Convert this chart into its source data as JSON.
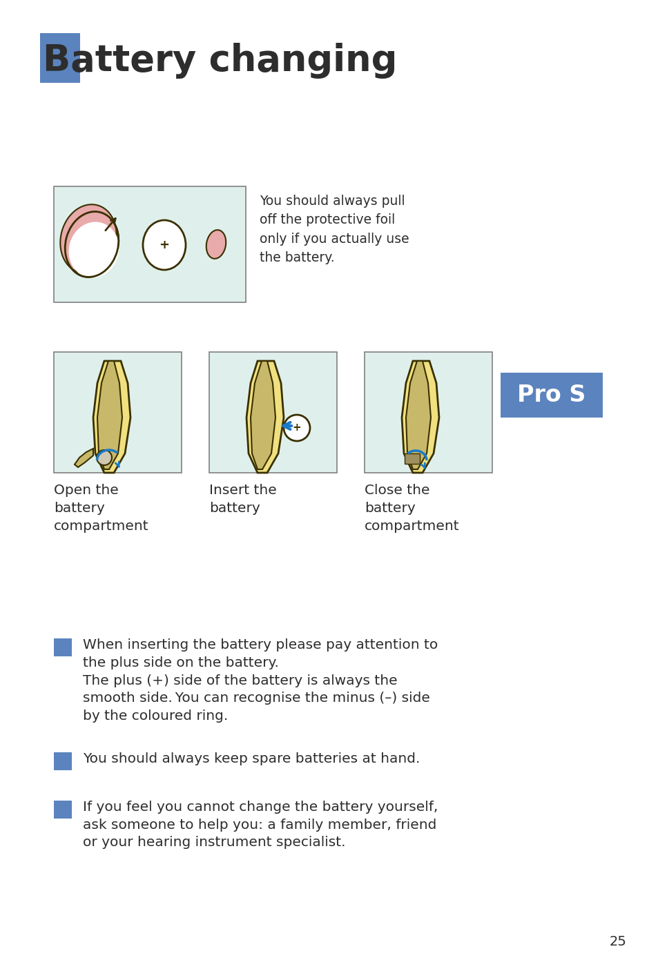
{
  "title": "Battery changing",
  "title_color": "#2d2d2d",
  "title_fontsize": 38,
  "header_box_color": "#5b83be",
  "bg_color": "#ffffff",
  "blue_color": "#5b83be",
  "bullet_square_color": "#5b83be",
  "text_color": "#2d2d2d",
  "foil_text": "You should always pull\noff the protective foil\nonly if you actually use\nthe battery.",
  "caption1": "Open the\nbattery\ncompartment",
  "caption2": "Insert the\nbattery",
  "caption3": "Close the\nbattery\ncompartment",
  "pros_label": "Pro S",
  "bullet1_line1": "When inserting the battery please pay attention to",
  "bullet1_line2": "the plus side on the battery.",
  "bullet1_line3": "The plus (+) side of the battery is always the",
  "bullet1_line4": "smooth side. You can recognise the minus (–) side",
  "bullet1_line5": "by the coloured ring.",
  "bullet2": "You should always keep spare batteries at hand.",
  "bullet3_line1": "If you feel you cannot change the battery yourself,",
  "bullet3_line2": "ask someone to help you: a family member, friend",
  "bullet3_line3": "or your hearing instrument specialist.",
  "page_number": "25",
  "img_bg_color": "#dff0ec",
  "img_border_color": "#808080",
  "battery_yellow": "#f0e080",
  "battery_tan": "#c8b86a",
  "battery_outline": "#3a3000",
  "arrow_color": "#1a7ac8",
  "pink_color": "#e8aaaa",
  "white_color": "#ffffff"
}
